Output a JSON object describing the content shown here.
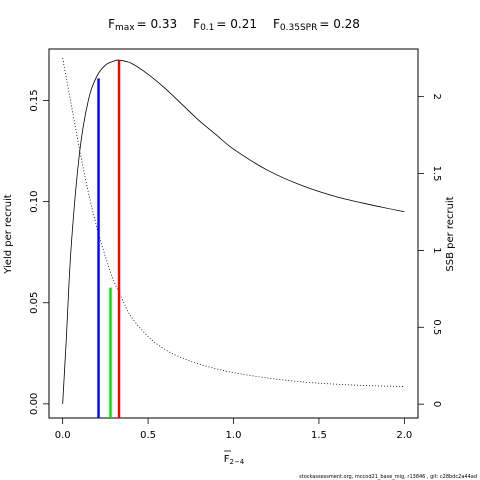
{
  "chart_data": {
    "type": "line",
    "title_parts": {
      "fmax": {
        "sym": "F",
        "sub": "max",
        "value": "= 0.33"
      },
      "f01": {
        "sym": "F",
        "sub": "0.1",
        "value": "= 0.21"
      },
      "f35": {
        "sym": "F",
        "sub": "0.35SPR",
        "value": "= 0.28"
      }
    },
    "xlabel": {
      "sym": "F",
      "sub": "2−4"
    },
    "ylabel_left": "Yield per recruit",
    "ylabel_right": "SSB per recruit",
    "xlim": [
      -0.08,
      2.08
    ],
    "ylim_left": [
      -0.007,
      0.1755
    ],
    "ylim_right": [
      -0.09,
      2.31
    ],
    "x_ticks": [
      {
        "value": 0,
        "label": "0.0"
      },
      {
        "value": 0.5,
        "label": "0.5"
      },
      {
        "value": 1.0,
        "label": "1.0"
      },
      {
        "value": 1.5,
        "label": "1.5"
      },
      {
        "value": 2.0,
        "label": "2.0"
      }
    ],
    "y_ticks_left": [
      {
        "value": 0,
        "label": "0.00"
      },
      {
        "value": 0.05,
        "label": "0.05"
      },
      {
        "value": 0.1,
        "label": "0.10"
      },
      {
        "value": 0.15,
        "label": "0.15"
      }
    ],
    "y_ticks_right": [
      {
        "value": 0,
        "label": "0"
      },
      {
        "value": 0.5,
        "label": "0.5"
      },
      {
        "value": 1,
        "label": "1"
      },
      {
        "value": 1.5,
        "label": "1.5"
      },
      {
        "value": 2,
        "label": "2"
      }
    ],
    "series": [
      {
        "axis": "left",
        "style": "solid",
        "x": [
          0,
          0.02,
          0.05,
          0.1,
          0.15,
          0.2,
          0.25,
          0.3,
          0.33,
          0.4,
          0.5,
          0.6,
          0.7,
          0.8,
          0.9,
          1.0,
          1.2,
          1.4,
          1.6,
          1.8,
          2.0
        ],
        "y": [
          0,
          0.03,
          0.078,
          0.125,
          0.15,
          0.162,
          0.1675,
          0.1695,
          0.17,
          0.1685,
          0.163,
          0.156,
          0.148,
          0.14,
          0.133,
          0.126,
          0.1155,
          0.108,
          0.1025,
          0.0985,
          0.095
        ]
      },
      {
        "axis": "right",
        "style": "dotted",
        "x": [
          0,
          0.05,
          0.1,
          0.15,
          0.2,
          0.25,
          0.3,
          0.35,
          0.4,
          0.5,
          0.6,
          0.7,
          0.8,
          0.9,
          1.0,
          1.2,
          1.4,
          1.6,
          1.8,
          2.0
        ],
        "y": [
          2.25,
          1.95,
          1.65,
          1.38,
          1.15,
          0.96,
          0.8,
          0.68,
          0.57,
          0.44,
          0.355,
          0.3,
          0.26,
          0.23,
          0.205,
          0.17,
          0.145,
          0.13,
          0.12,
          0.115
        ]
      }
    ],
    "reference_lines": [
      {
        "name": "F0.1",
        "x": 0.21,
        "y_top": 0.161,
        "color": "#0000ff"
      },
      {
        "name": "F0.35SPR",
        "x": 0.28,
        "y_top": 0.0575,
        "color": "#00dd00"
      },
      {
        "name": "Fmax",
        "x": 0.33,
        "y_top": 0.17,
        "color": "#ff0000"
      }
    ]
  },
  "footer": "stockassessment.org, mccod21_base_mig, r13846 , git: c28bdc2a44ad"
}
